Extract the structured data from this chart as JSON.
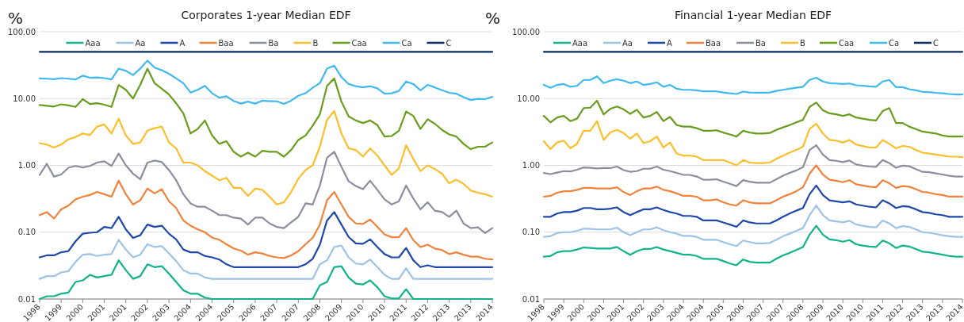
{
  "chart_data": [
    {
      "type": "line",
      "title": "Corporates 1-year Median EDF",
      "ylabel": "%",
      "log": "y",
      "grid": "y",
      "legend": "top",
      "line_style": "solid",
      "marker": "none",
      "categories": [
        "1998",
        null,
        null,
        "1999",
        null,
        null,
        "2000",
        null,
        null,
        "2001",
        null,
        null,
        "2001",
        null,
        null,
        "2002",
        null,
        null,
        "2003",
        null,
        null,
        "2004",
        null,
        null,
        "2004",
        null,
        null,
        "2005",
        null,
        null,
        "2006",
        null,
        null,
        "2007",
        null,
        null,
        "2007",
        null,
        null,
        "2008",
        null,
        null,
        "2009",
        null,
        null,
        "2010",
        null,
        null,
        "2010",
        null,
        null,
        "2011",
        null,
        null,
        "2012",
        null,
        null,
        "2013",
        null,
        null,
        "2013",
        null,
        null,
        "2014"
      ],
      "ylim": [
        0.01,
        100
      ],
      "yticks": [
        {
          "value": 0.01,
          "label": "0.01"
        },
        {
          "value": 0.1,
          "label": "0.10"
        },
        {
          "value": 1,
          "label": "1.00"
        },
        {
          "value": 10,
          "label": "10.00"
        },
        {
          "value": 100,
          "label": "100.00"
        }
      ],
      "series": [
        {
          "name": "Aaa",
          "color": "#12b38b",
          "values": [
            0.01,
            0.011,
            0.011,
            0.012,
            0.0125,
            0.018,
            0.019,
            0.023,
            0.021,
            0.022,
            0.023,
            0.038,
            0.027,
            0.02,
            0.022,
            0.033,
            0.03,
            0.031,
            0.024,
            0.018,
            0.0135,
            0.012,
            0.012,
            0.0105,
            0.01,
            0.01,
            0.01,
            0.01,
            0.01,
            0.01,
            0.01,
            0.01,
            0.01,
            0.01,
            0.01,
            0.01,
            0.01,
            0.01,
            0.01,
            0.016,
            0.018,
            0.03,
            0.031,
            0.021,
            0.017,
            0.0165,
            0.019,
            0.015,
            0.011,
            0.0102,
            0.0102,
            0.014,
            0.01,
            0.01,
            0.01,
            0.01,
            0.01,
            0.01,
            0.01,
            0.01,
            0.01,
            0.01,
            0.01,
            0.01
          ]
        },
        {
          "name": "Aa",
          "color": "#9dc3e6",
          "values": [
            0.02,
            0.022,
            0.022,
            0.025,
            0.026,
            0.036,
            0.046,
            0.047,
            0.044,
            0.046,
            0.047,
            0.077,
            0.055,
            0.042,
            0.046,
            0.066,
            0.06,
            0.062,
            0.048,
            0.037,
            0.027,
            0.024,
            0.024,
            0.021,
            0.02,
            0.02,
            0.02,
            0.02,
            0.02,
            0.02,
            0.02,
            0.02,
            0.02,
            0.02,
            0.02,
            0.02,
            0.02,
            0.02,
            0.02,
            0.033,
            0.038,
            0.06,
            0.063,
            0.042,
            0.034,
            0.033,
            0.039,
            0.03,
            0.023,
            0.02,
            0.02,
            0.029,
            0.02,
            0.02,
            0.02,
            0.02,
            0.02,
            0.02,
            0.02,
            0.02,
            0.02,
            0.02,
            0.02,
            0.02
          ]
        },
        {
          "name": "A",
          "color": "#1f48a8",
          "values": [
            0.042,
            0.045,
            0.045,
            0.05,
            0.052,
            0.073,
            0.095,
            0.098,
            0.1,
            0.12,
            0.115,
            0.17,
            0.11,
            0.082,
            0.09,
            0.13,
            0.12,
            0.125,
            0.095,
            0.078,
            0.055,
            0.05,
            0.05,
            0.044,
            0.042,
            0.039,
            0.033,
            0.03,
            0.03,
            0.03,
            0.03,
            0.03,
            0.03,
            0.03,
            0.03,
            0.03,
            0.03,
            0.033,
            0.04,
            0.065,
            0.15,
            0.2,
            0.13,
            0.085,
            0.068,
            0.067,
            0.078,
            0.06,
            0.047,
            0.042,
            0.042,
            0.058,
            0.038,
            0.03,
            0.032,
            0.03,
            0.03,
            0.03,
            0.03,
            0.03,
            0.03,
            0.03,
            0.03,
            0.03
          ]
        },
        {
          "name": "Baa",
          "color": "#f0823c",
          "values": [
            0.18,
            0.2,
            0.16,
            0.22,
            0.25,
            0.31,
            0.34,
            0.36,
            0.4,
            0.37,
            0.34,
            0.59,
            0.37,
            0.26,
            0.3,
            0.45,
            0.38,
            0.44,
            0.29,
            0.23,
            0.15,
            0.125,
            0.11,
            0.1,
            0.083,
            0.077,
            0.066,
            0.057,
            0.053,
            0.046,
            0.05,
            0.048,
            0.044,
            0.042,
            0.041,
            0.045,
            0.052,
            0.066,
            0.082,
            0.13,
            0.3,
            0.4,
            0.26,
            0.17,
            0.135,
            0.133,
            0.155,
            0.12,
            0.093,
            0.084,
            0.084,
            0.115,
            0.076,
            0.06,
            0.065,
            0.057,
            0.054,
            0.047,
            0.05,
            0.046,
            0.043,
            0.043,
            0.04,
            0.039
          ]
        },
        {
          "name": "Ba",
          "color": "#8b8e9e",
          "values": [
            0.72,
            1.05,
            0.68,
            0.73,
            0.92,
            0.98,
            0.93,
            0.98,
            1.1,
            1.15,
            0.98,
            1.5,
            1.0,
            0.75,
            0.62,
            1.1,
            1.18,
            1.12,
            0.85,
            0.6,
            0.37,
            0.27,
            0.24,
            0.24,
            0.21,
            0.18,
            0.18,
            0.165,
            0.16,
            0.13,
            0.165,
            0.165,
            0.135,
            0.12,
            0.115,
            0.14,
            0.17,
            0.27,
            0.26,
            0.5,
            1.3,
            1.6,
            0.95,
            0.58,
            0.49,
            0.44,
            0.59,
            0.43,
            0.31,
            0.26,
            0.29,
            0.5,
            0.32,
            0.22,
            0.28,
            0.21,
            0.2,
            0.17,
            0.21,
            0.135,
            0.115,
            0.118,
            0.097,
            0.115
          ]
        },
        {
          "name": "B",
          "color": "#fbbf2c",
          "values": [
            2.15,
            2.05,
            1.85,
            2.05,
            2.45,
            2.65,
            3,
            2.85,
            3.8,
            4.1,
            3,
            5,
            2.8,
            2.1,
            2.2,
            3.3,
            3.6,
            3.8,
            2.2,
            1.8,
            1.1,
            1.1,
            1.0,
            0.82,
            0.7,
            0.6,
            0.65,
            0.46,
            0.46,
            0.35,
            0.45,
            0.43,
            0.34,
            0.26,
            0.28,
            0.4,
            0.63,
            0.85,
            1.0,
            1.9,
            4.8,
            6.5,
            3,
            1.8,
            1.7,
            1.35,
            1.8,
            1.4,
            1.0,
            0.72,
            0.9,
            2.0,
            1.25,
            0.82,
            1.0,
            0.88,
            0.75,
            0.54,
            0.61,
            0.53,
            0.42,
            0.39,
            0.37,
            0.34
          ]
        },
        {
          "name": "Caa",
          "color": "#6a9c1e",
          "values": [
            8,
            7.8,
            7.6,
            8.2,
            7.9,
            7.5,
            9.8,
            8.3,
            8.5,
            8.1,
            7.5,
            16,
            13.5,
            10,
            16,
            28,
            17,
            14,
            11.5,
            8.5,
            6,
            3,
            3.5,
            4.7,
            2.8,
            2.1,
            2.3,
            1.6,
            1.35,
            1.55,
            1.35,
            1.65,
            1.6,
            1.6,
            1.35,
            1.7,
            2.4,
            2.8,
            3.9,
            5.8,
            15.5,
            20,
            9,
            5.4,
            4.7,
            4.3,
            4.7,
            4,
            2.7,
            2.75,
            3.3,
            6.4,
            5.5,
            3.5,
            4.9,
            4.2,
            3.4,
            2.9,
            2.7,
            2.1,
            1.75,
            1.9,
            1.9,
            2.2
          ]
        },
        {
          "name": "Ca",
          "color": "#40b9ef",
          "values": [
            20,
            19.8,
            19.5,
            20.2,
            19.8,
            19.3,
            22,
            20.5,
            20.7,
            20.2,
            19.3,
            28,
            26,
            22.5,
            28,
            37,
            29,
            26.5,
            23.5,
            20,
            17,
            12.3,
            13.5,
            15.5,
            12,
            10.3,
            10.8,
            9.2,
            8.4,
            9,
            8.4,
            9.3,
            9.1,
            9.1,
            8.3,
            9.3,
            11,
            12,
            14.5,
            17,
            28,
            31,
            21,
            16.5,
            15.3,
            14.7,
            15.3,
            14.2,
            11.8,
            12,
            13,
            18,
            16.5,
            13.3,
            16,
            14.7,
            13.3,
            12.2,
            11.8,
            10.5,
            9.5,
            9.9,
            9.8,
            10.6
          ]
        },
        {
          "name": "C",
          "color": "#0d2b5e",
          "values": [
            50,
            50,
            50,
            50,
            50,
            50,
            50,
            50,
            50,
            50,
            50,
            50,
            50,
            50,
            50,
            50,
            50,
            50,
            50,
            50,
            50,
            50,
            50,
            50,
            50,
            50,
            50,
            50,
            50,
            50,
            50,
            50,
            50,
            50,
            50,
            50,
            50,
            50,
            50,
            50,
            50,
            50,
            50,
            50,
            50,
            50,
            50,
            50,
            50,
            50,
            50,
            50,
            50,
            50,
            50,
            50,
            50,
            50,
            50,
            50,
            50,
            50,
            50,
            50
          ]
        }
      ]
    },
    {
      "type": "line",
      "title": "Financial 1-year Median EDF",
      "ylabel": "%",
      "log": "y",
      "grid": "y",
      "legend": "top",
      "line_style": "solid",
      "marker": "none",
      "categories": [
        "1998",
        null,
        null,
        "1999",
        null,
        null,
        "2000",
        null,
        null,
        "2001",
        null,
        null,
        "2001",
        null,
        null,
        "2002",
        null,
        null,
        "2003",
        null,
        null,
        "2004",
        null,
        null,
        "2004",
        null,
        null,
        "2005",
        null,
        null,
        "2006",
        null,
        null,
        "2007",
        null,
        null,
        "2007",
        null,
        null,
        "2008",
        null,
        null,
        "2009",
        null,
        null,
        "2010",
        null,
        null,
        "2010",
        null,
        null,
        "2011",
        null,
        null,
        "2012",
        null,
        null,
        "2013",
        null,
        null,
        "2013",
        null,
        null,
        "2014"
      ],
      "ylim": [
        0.01,
        100
      ],
      "yticks": [
        {
          "value": 0.01,
          "label": "0.01"
        },
        {
          "value": 0.1,
          "label": "0.10"
        },
        {
          "value": 1,
          "label": "1.00"
        },
        {
          "value": 10,
          "label": "10.00"
        },
        {
          "value": 100,
          "label": "100.00"
        }
      ],
      "series": [
        {
          "name": "Aaa",
          "color": "#12b38b",
          "values": [
            0.043,
            0.044,
            0.05,
            0.052,
            0.052,
            0.055,
            0.059,
            0.058,
            0.057,
            0.057,
            0.057,
            0.06,
            0.052,
            0.046,
            0.052,
            0.056,
            0.056,
            0.06,
            0.055,
            0.052,
            0.049,
            0.046,
            0.046,
            0.044,
            0.04,
            0.04,
            0.04,
            0.037,
            0.034,
            0.032,
            0.039,
            0.036,
            0.035,
            0.035,
            0.035,
            0.04,
            0.045,
            0.049,
            0.054,
            0.06,
            0.092,
            0.125,
            0.092,
            0.078,
            0.076,
            0.072,
            0.076,
            0.066,
            0.063,
            0.061,
            0.06,
            0.075,
            0.068,
            0.058,
            0.063,
            0.061,
            0.056,
            0.051,
            0.05,
            0.048,
            0.046,
            0.044,
            0.043,
            0.043
          ]
        },
        {
          "name": "Aa",
          "color": "#9dc3e6",
          "values": [
            0.085,
            0.087,
            0.097,
            0.1,
            0.1,
            0.105,
            0.113,
            0.112,
            0.11,
            0.11,
            0.11,
            0.117,
            0.1,
            0.09,
            0.1,
            0.11,
            0.11,
            0.118,
            0.107,
            0.1,
            0.095,
            0.088,
            0.088,
            0.085,
            0.077,
            0.077,
            0.077,
            0.071,
            0.066,
            0.062,
            0.075,
            0.071,
            0.068,
            0.068,
            0.069,
            0.077,
            0.087,
            0.095,
            0.105,
            0.115,
            0.18,
            0.25,
            0.18,
            0.15,
            0.145,
            0.14,
            0.148,
            0.13,
            0.125,
            0.12,
            0.118,
            0.15,
            0.135,
            0.115,
            0.123,
            0.12,
            0.11,
            0.1,
            0.098,
            0.094,
            0.09,
            0.087,
            0.085,
            0.085
          ]
        },
        {
          "name": "A",
          "color": "#1f48a8",
          "values": [
            0.17,
            0.17,
            0.19,
            0.2,
            0.2,
            0.21,
            0.23,
            0.23,
            0.22,
            0.22,
            0.225,
            0.235,
            0.2,
            0.18,
            0.2,
            0.22,
            0.22,
            0.235,
            0.215,
            0.2,
            0.19,
            0.175,
            0.175,
            0.17,
            0.15,
            0.15,
            0.15,
            0.14,
            0.13,
            0.12,
            0.15,
            0.14,
            0.135,
            0.135,
            0.135,
            0.15,
            0.17,
            0.19,
            0.21,
            0.23,
            0.37,
            0.5,
            0.36,
            0.3,
            0.29,
            0.28,
            0.29,
            0.26,
            0.25,
            0.24,
            0.235,
            0.3,
            0.27,
            0.23,
            0.245,
            0.24,
            0.22,
            0.2,
            0.195,
            0.185,
            0.18,
            0.17,
            0.17,
            0.17
          ]
        },
        {
          "name": "Baa",
          "color": "#f0823c",
          "values": [
            0.34,
            0.35,
            0.39,
            0.41,
            0.41,
            0.43,
            0.46,
            0.46,
            0.45,
            0.45,
            0.45,
            0.47,
            0.4,
            0.36,
            0.41,
            0.45,
            0.45,
            0.48,
            0.43,
            0.41,
            0.38,
            0.35,
            0.35,
            0.34,
            0.3,
            0.3,
            0.31,
            0.28,
            0.26,
            0.25,
            0.3,
            0.28,
            0.27,
            0.27,
            0.27,
            0.3,
            0.34,
            0.37,
            0.41,
            0.47,
            0.75,
            1.0,
            0.73,
            0.61,
            0.59,
            0.56,
            0.6,
            0.52,
            0.5,
            0.48,
            0.47,
            0.6,
            0.54,
            0.46,
            0.49,
            0.48,
            0.44,
            0.4,
            0.39,
            0.37,
            0.36,
            0.34,
            0.34,
            0.34
          ]
        },
        {
          "name": "Ba",
          "color": "#8b8e9e",
          "values": [
            0.77,
            0.74,
            0.78,
            0.82,
            0.81,
            0.86,
            0.93,
            0.92,
            0.9,
            0.91,
            0.91,
            0.96,
            0.85,
            0.8,
            0.82,
            0.89,
            0.89,
            0.96,
            0.86,
            0.82,
            0.77,
            0.72,
            0.72,
            0.68,
            0.61,
            0.61,
            0.62,
            0.57,
            0.53,
            0.49,
            0.6,
            0.57,
            0.55,
            0.55,
            0.55,
            0.62,
            0.7,
            0.77,
            0.84,
            0.94,
            1.7,
            2.0,
            1.45,
            1.2,
            1.17,
            1.12,
            1.18,
            1.03,
            0.99,
            0.96,
            0.95,
            1.2,
            1.08,
            0.92,
            0.99,
            0.97,
            0.88,
            0.8,
            0.79,
            0.76,
            0.73,
            0.7,
            0.68,
            0.68
          ]
        },
        {
          "name": "B",
          "color": "#fbbf2c",
          "values": [
            2.3,
            1.75,
            2.2,
            2.35,
            1.8,
            2.1,
            3.3,
            3.3,
            4.6,
            2.4,
            3.1,
            3.4,
            3.05,
            2.5,
            3.0,
            2.15,
            2.3,
            2.7,
            1.85,
            2.2,
            1.5,
            1.4,
            1.4,
            1.35,
            1.2,
            1.2,
            1.2,
            1.2,
            1.1,
            1.0,
            1.2,
            1.1,
            1.08,
            1.08,
            1.1,
            1.25,
            1.4,
            1.55,
            1.7,
            1.9,
            3.5,
            4.2,
            3.0,
            2.4,
            2.35,
            2.2,
            2.4,
            2.05,
            1.95,
            1.85,
            1.85,
            2.4,
            2.1,
            1.8,
            1.95,
            1.9,
            1.7,
            1.55,
            1.5,
            1.45,
            1.4,
            1.35,
            1.35,
            1.33
          ]
        },
        {
          "name": "Caa",
          "color": "#6a9c1e",
          "values": [
            5.5,
            4.4,
            5.2,
            5.5,
            4.6,
            5,
            7.2,
            7.3,
            9.3,
            5.8,
            7,
            7.6,
            6.9,
            5.9,
            6.8,
            5.2,
            5.5,
            6.3,
            4.6,
            5.3,
            4,
            3.8,
            3.8,
            3.6,
            3.3,
            3.3,
            3.35,
            3.1,
            2.9,
            2.7,
            3.3,
            3.1,
            3,
            3,
            3.05,
            3.4,
            3.7,
            4,
            4.4,
            4.8,
            7.5,
            8.7,
            6.7,
            6,
            5.8,
            5.5,
            5.8,
            5.2,
            5,
            4.8,
            4.7,
            6.5,
            7.2,
            4.3,
            4.3,
            3.8,
            3.5,
            3.2,
            3.1,
            3,
            2.8,
            2.7,
            2.7,
            2.7
          ]
        },
        {
          "name": "Ca",
          "color": "#40b9ef",
          "values": [
            16,
            14.5,
            16,
            16.5,
            15,
            15.5,
            19,
            19,
            21.5,
            17,
            18.5,
            19.5,
            18.5,
            17,
            18,
            16,
            16.5,
            17.5,
            15,
            16,
            14,
            13.5,
            13.5,
            13.3,
            12.8,
            12.8,
            12.8,
            12.3,
            12,
            11.7,
            12.7,
            12.3,
            12.2,
            12.2,
            12.3,
            13,
            13.5,
            14,
            14.5,
            15,
            19,
            20.5,
            18,
            17,
            16.8,
            16.5,
            16.8,
            15.8,
            15.5,
            15.2,
            15,
            18,
            19,
            14.8,
            14.8,
            13.8,
            13.3,
            12.6,
            12.5,
            12.2,
            12,
            11.7,
            11.5,
            11.5
          ]
        },
        {
          "name": "C",
          "color": "#0d2b5e",
          "values": [
            50,
            50,
            50,
            50,
            50,
            50,
            50,
            50,
            50,
            50,
            50,
            50,
            50,
            50,
            50,
            50,
            50,
            50,
            50,
            50,
            50,
            50,
            50,
            50,
            50,
            50,
            50,
            50,
            50,
            50,
            50,
            50,
            50,
            50,
            50,
            50,
            50,
            50,
            50,
            50,
            50,
            50,
            50,
            50,
            50,
            50,
            50,
            50,
            50,
            50,
            50,
            50,
            50,
            50,
            50,
            50,
            50,
            50,
            50,
            50,
            50,
            50,
            50,
            50
          ]
        }
      ]
    }
  ]
}
